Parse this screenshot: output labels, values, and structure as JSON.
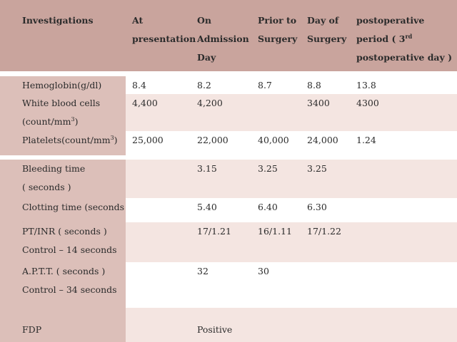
{
  "headers": [
    "Investigations",
    "At\npresentation",
    "On\nAdmission\nDay",
    "Prior to\nSurgery",
    "Day of\nSurgery",
    "postoperative\nperiod ( 3rd\npostoperative day )"
  ],
  "rows": [
    [
      "Hemoglobin(g/dl)",
      "8.4",
      "8.2",
      "8.7",
      "8.8",
      "13.8"
    ],
    [
      "White blood cells\n(count/mm3)",
      "4,400",
      "4,200",
      "",
      "3400",
      "4300"
    ],
    [
      "Platelets(count/mm3)",
      "25,000",
      "22,000",
      "40,000",
      "24,000",
      "1.24"
    ],
    [
      "Bleeding time\n( seconds )",
      "",
      "3.15",
      "3.25",
      "3.25",
      ""
    ],
    [
      "Clotting time (seconds )",
      "",
      "5.40",
      "6.40",
      "6.30",
      ""
    ],
    [
      "PT/INR ( seconds )\nControl – 14 seconds",
      "",
      "17/1.21",
      "16/1.11",
      "17/1.22",
      ""
    ],
    [
      "A.P.T.T. ( seconds )\nControl – 34 seconds",
      "",
      "32",
      "30",
      "",
      ""
    ],
    [
      "FDP",
      "",
      "Positive",
      "",
      "",
      ""
    ]
  ],
  "colors": {
    "header": "#c9a49d",
    "first_column": "#dcbfb9",
    "alt_row": "#f4e5e1",
    "plain_row": "#ffffff"
  }
}
